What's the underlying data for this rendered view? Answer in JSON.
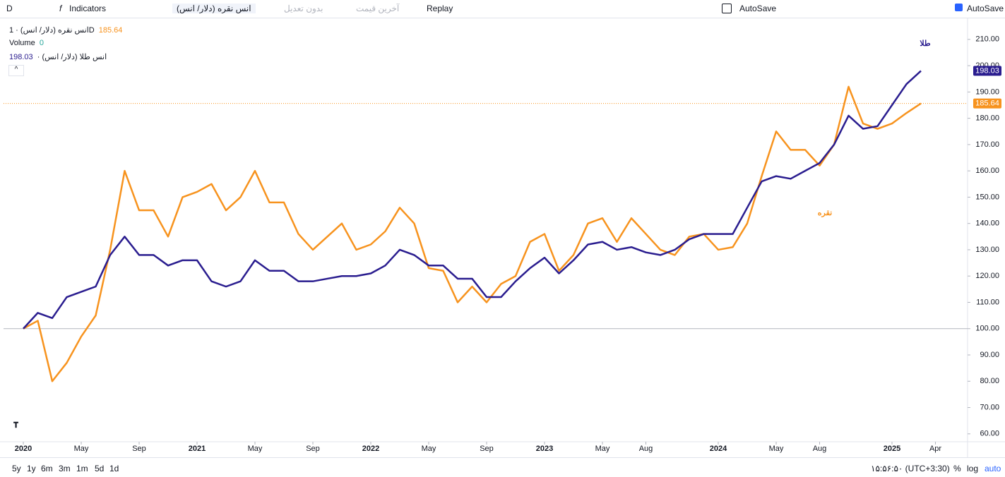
{
  "toolbar": {
    "symbol_short": "D",
    "indicators": "Indicators",
    "symbol": "انس نقره (دلار/ انس)",
    "adjust": "بدون تعدیل",
    "price_type": "آخرین قیمت",
    "replay": "Replay",
    "autosave": "AutoSave",
    "autosave_check": "AutoSave"
  },
  "legend": {
    "interval": "1D",
    "volume": "Volume",
    "volume_value": "0"
  },
  "bottom_bar": {
    "ranges": [
      "5y",
      "1y",
      "6m",
      "3m",
      "1m",
      "5d",
      "1d"
    ],
    "clock": "۱۵:۵۶:۵۰ (UTC+3:30)",
    "percent": "%",
    "log": "log",
    "auto": "auto"
  },
  "chart_data": {
    "type": "line",
    "annotations": [
      "طلا",
      "نقره"
    ],
    "x": [
      "2020-01",
      "2020-02",
      "2020-03",
      "2020-04",
      "2020-05",
      "2020-06",
      "2020-07",
      "2020-08",
      "2020-09",
      "2020-10",
      "2020-11",
      "2020-12",
      "2021-01",
      "2021-02",
      "2021-03",
      "2021-04",
      "2021-05",
      "2021-06",
      "2021-07",
      "2021-08",
      "2021-09",
      "2021-10",
      "2021-11",
      "2021-12",
      "2022-01",
      "2022-02",
      "2022-03",
      "2022-04",
      "2022-05",
      "2022-06",
      "2022-07",
      "2022-08",
      "2022-09",
      "2022-10",
      "2022-11",
      "2022-12",
      "2023-01",
      "2023-02",
      "2023-03",
      "2023-04",
      "2023-05",
      "2023-06",
      "2023-07",
      "2023-08",
      "2023-09",
      "2023-10",
      "2023-11",
      "2023-12",
      "2024-01",
      "2024-02",
      "2024-03",
      "2024-04",
      "2024-05",
      "2024-06",
      "2024-07",
      "2024-08",
      "2024-09",
      "2024-10",
      "2024-11",
      "2024-12",
      "2025-01",
      "2025-02",
      "2025-03"
    ],
    "series": [
      {
        "name": "انس نقره (دلار/ انس)",
        "color": "#f7931e",
        "values": [
          100,
          103,
          80,
          87,
          97,
          105,
          130,
          160,
          145,
          145,
          135,
          150,
          152,
          155,
          145,
          150,
          160,
          148,
          148,
          136,
          130,
          135,
          140,
          130,
          132,
          137,
          146,
          140,
          123,
          122,
          110,
          116,
          110,
          117,
          120,
          133,
          136,
          122,
          128,
          140,
          142,
          133,
          142,
          136,
          130,
          128,
          135,
          136,
          130,
          131,
          140,
          158,
          175,
          168,
          168,
          162,
          170,
          192,
          178,
          176,
          178,
          182,
          185.64
        ]
      },
      {
        "name": "انس طلا (دلار/ انس)",
        "color": "#2a1d8f",
        "values": [
          100,
          106,
          104,
          112,
          114,
          116,
          128,
          135,
          128,
          128,
          124,
          126,
          126,
          118,
          116,
          118,
          126,
          122,
          122,
          118,
          118,
          119,
          120,
          120,
          121,
          124,
          130,
          128,
          124,
          124,
          119,
          119,
          112,
          112,
          118,
          123,
          127,
          121,
          126,
          132,
          133,
          130,
          131,
          129,
          128,
          130,
          134,
          136,
          136,
          136,
          146,
          156,
          158,
          157,
          160,
          163,
          170,
          181,
          176,
          177,
          185,
          193,
          198.03
        ]
      }
    ],
    "ylim": [
      57,
      218
    ],
    "yticks": [
      {
        "value": 60,
        "label": "60.00"
      },
      {
        "value": 70,
        "label": "70.00"
      },
      {
        "value": 80,
        "label": "80.00"
      },
      {
        "value": 90,
        "label": "90.00"
      },
      {
        "value": 100,
        "label": "100.00"
      },
      {
        "value": 110,
        "label": "110.00"
      },
      {
        "value": 120,
        "label": "120.00"
      },
      {
        "value": 130,
        "label": "130.00"
      },
      {
        "value": 140,
        "label": "140.00"
      },
      {
        "value": 150,
        "label": "150.00"
      },
      {
        "value": 160,
        "label": "160.00"
      },
      {
        "value": 170,
        "label": "170.00"
      },
      {
        "value": 180,
        "label": "180.00"
      },
      {
        "value": 190,
        "label": "190.00"
      },
      {
        "value": 200,
        "label": "200.00"
      },
      {
        "value": 210,
        "label": "210.00"
      }
    ],
    "xticks": [
      {
        "value": "2020-01",
        "label": "2020"
      },
      {
        "value": "2020-05",
        "label": "May"
      },
      {
        "value": "2020-09",
        "label": "Sep"
      },
      {
        "value": "2021-01",
        "label": "2021"
      },
      {
        "value": "2021-05",
        "label": "May"
      },
      {
        "value": "2021-09",
        "label": "Sep"
      },
      {
        "value": "2022-01",
        "label": "2022"
      },
      {
        "value": "2022-05",
        "label": "May"
      },
      {
        "value": "2022-09",
        "label": "Sep"
      },
      {
        "value": "2023-01",
        "label": "2023"
      },
      {
        "value": "2023-05",
        "label": "May"
      },
      {
        "value": "2023-08",
        "label": "Aug"
      },
      {
        "value": "2024-01",
        "label": "2024"
      },
      {
        "value": "2024-05",
        "label": "May"
      },
      {
        "value": "2024-08",
        "label": "Aug"
      },
      {
        "value": "2025-01",
        "label": "2025"
      },
      {
        "value": "2025-04",
        "label": "Apr"
      }
    ],
    "baseline": 100
  }
}
